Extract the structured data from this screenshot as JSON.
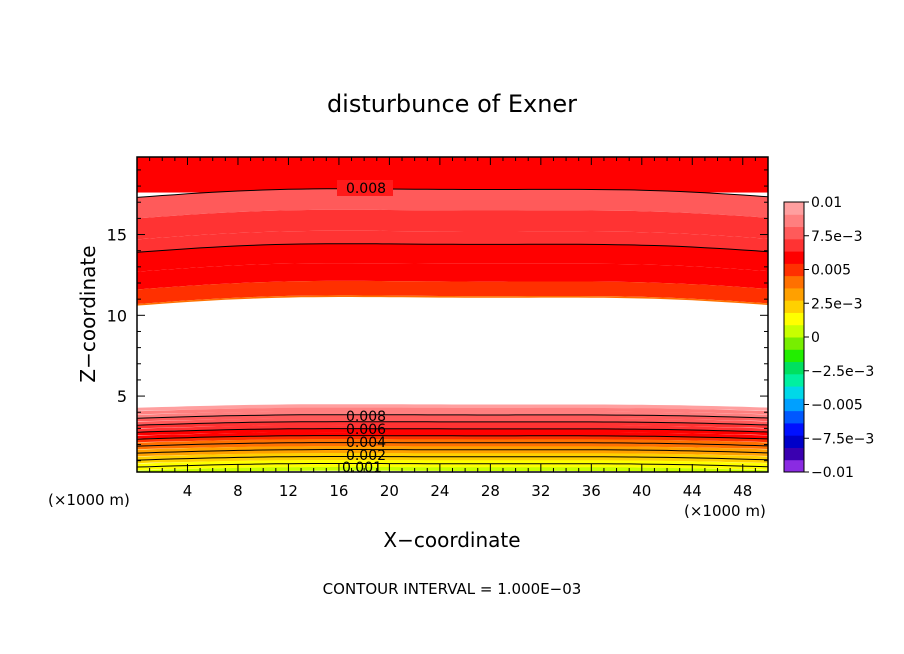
{
  "chart_data": {
    "type": "contour",
    "title": "disturbunce of Exner",
    "xlabel": "X−coordinate",
    "ylabel": "Z−coordinate",
    "x_unit": "(×1000 m)",
    "x_unit_right": "(×1000 m)",
    "xlim": [
      0,
      50
    ],
    "ylim": [
      0.3,
      19.8
    ],
    "x_ticks": [
      4,
      8,
      12,
      16,
      20,
      24,
      28,
      32,
      36,
      40,
      44,
      48
    ],
    "y_ticks": [
      5,
      10,
      15
    ],
    "footer": "CONTOUR INTERVAL = 1.000E−03",
    "colorbar": {
      "tick_labels": [
        "0.01",
        "7.5e−3",
        "0.005",
        "2.5e−3",
        "0",
        "−2.5e−3",
        "−0.005",
        "−7.5e−3",
        "−0.01"
      ],
      "tick_values": [
        0.01,
        0.0075,
        0.005,
        0.0025,
        0,
        -0.0025,
        -0.005,
        -0.0075,
        -0.01
      ],
      "colors": [
        "#8a2be2",
        "#3a00b0",
        "#0000c8",
        "#0010ff",
        "#0058ff",
        "#00a0ff",
        "#00d8e8",
        "#00f0a0",
        "#00e060",
        "#22ee00",
        "#77ee00",
        "#c8ff00",
        "#ffff00",
        "#ffd000",
        "#ffa000",
        "#ff7000",
        "#ff3000",
        "#ff0000",
        "#ff3333",
        "#ff5a5a",
        "#ff7f7f",
        "#ff9f9f"
      ]
    },
    "contour_labels": [
      "0.008",
      "0.008",
      "0.006",
      "0.004",
      "0.002",
      "0.001"
    ],
    "upper_levels": [
      0.0075,
      0.007,
      0.0065,
      0.006,
      0.0055,
      0.005,
      0.0045
    ],
    "lower_levels": [
      0.0095,
      0.009,
      0.0085,
      0.008,
      0.0075,
      0.007,
      0.0065,
      0.006,
      0.0055,
      0.005,
      0.0045,
      0.004,
      0.0035,
      0.003,
      0.0025,
      0.002,
      0.0015,
      0.001,
      0.0005
    ],
    "grid": false,
    "legend_position": "right"
  }
}
